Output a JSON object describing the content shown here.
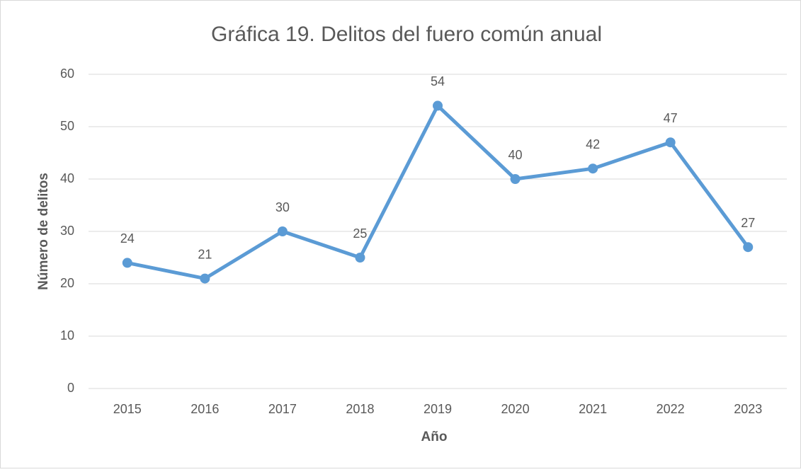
{
  "chart_data": {
    "type": "line",
    "title": "Gráfica 19. Delitos del fuero común anual",
    "x_label": "Año",
    "y_label": "Número de delitos",
    "categories": [
      "2015",
      "2016",
      "2017",
      "2018",
      "2019",
      "2020",
      "2021",
      "2022",
      "2023"
    ],
    "series": [
      {
        "name": "Delitos",
        "color": "#5b9bd5",
        "values": [
          24,
          21,
          30,
          25,
          54,
          40,
          42,
          47,
          27
        ]
      }
    ],
    "ylim": [
      0,
      60
    ],
    "yticks": [
      0,
      10,
      20,
      30,
      40,
      50,
      60
    ],
    "grid": true
  }
}
